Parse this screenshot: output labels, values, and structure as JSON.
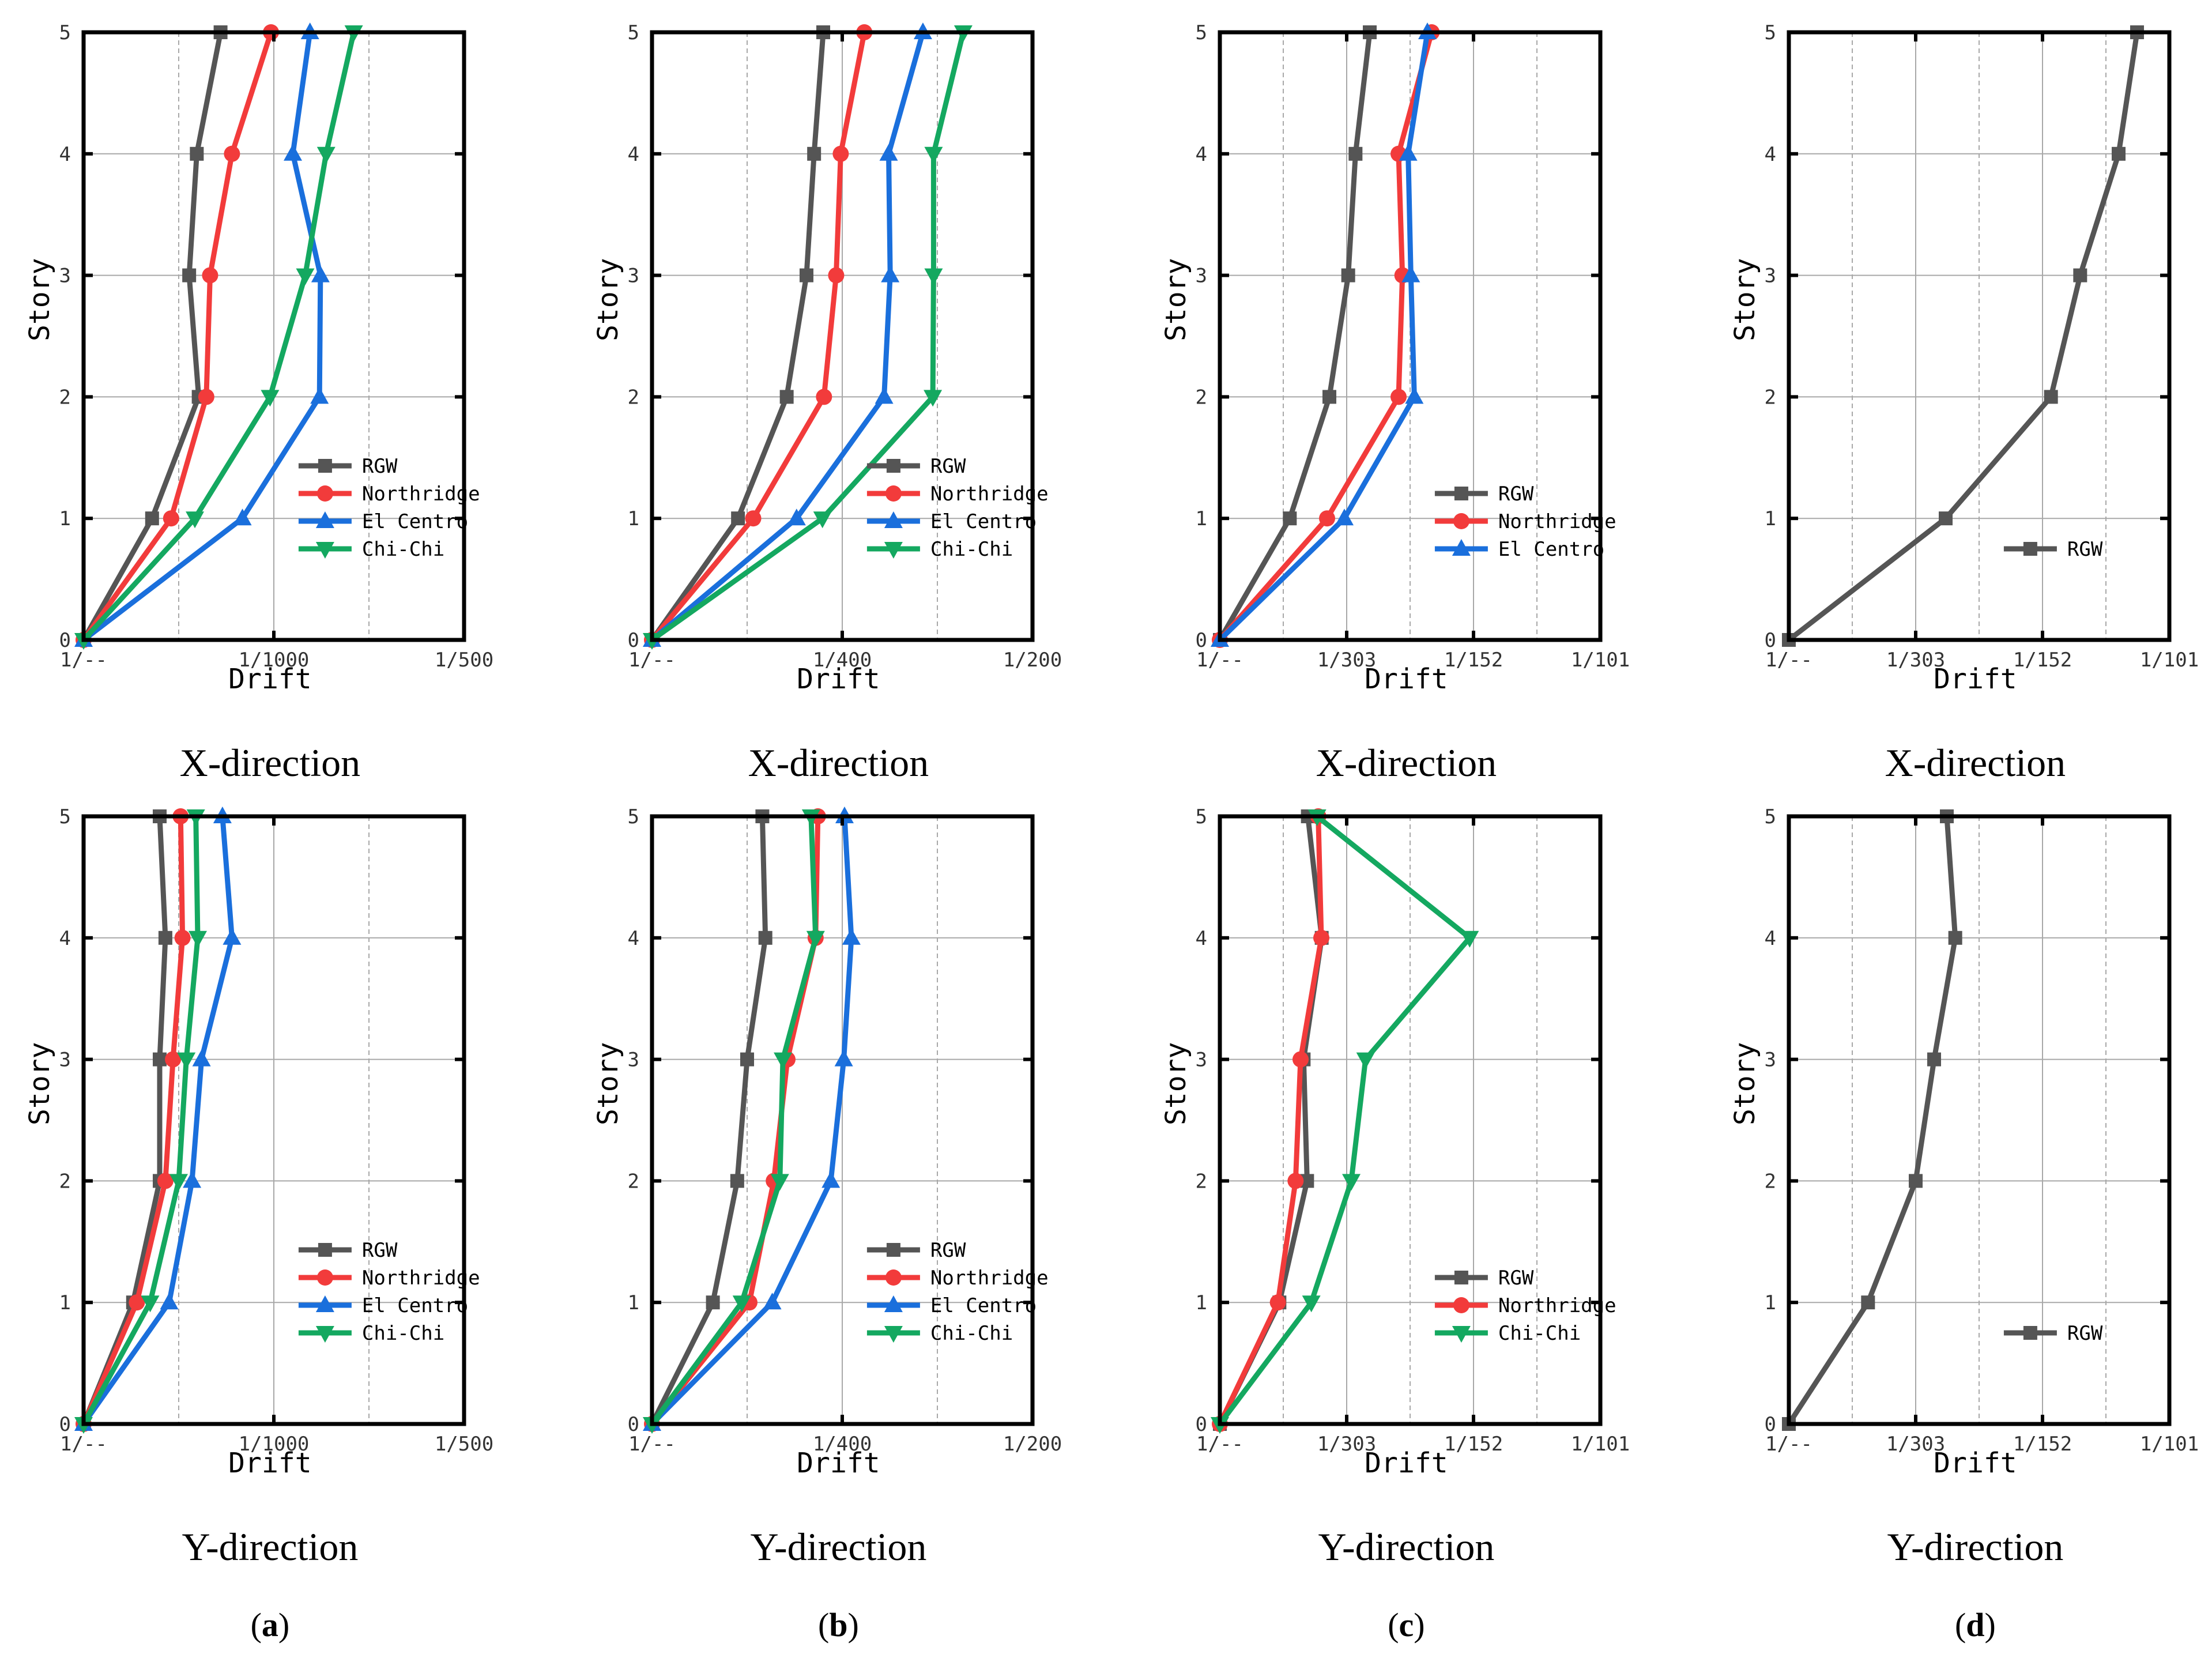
{
  "series_styles": {
    "RGW": {
      "color": "#555555",
      "marker": "square"
    },
    "Northridge": {
      "color": "#f23b3b",
      "marker": "circle"
    },
    "El Centro": {
      "color": "#1a6fdc",
      "marker": "triangle-up"
    },
    "Chi-Chi": {
      "color": "#14a860",
      "marker": "triangle-down"
    }
  },
  "columns": [
    {
      "open": "(",
      "letter": "a",
      "close": ")"
    },
    {
      "open": "(",
      "letter": "b",
      "close": ")"
    },
    {
      "open": "(",
      "letter": "c",
      "close": ")"
    },
    {
      "open": "(",
      "letter": "d",
      "close": ")"
    }
  ],
  "chart_data": [
    {
      "type": "line",
      "title": "X-direction",
      "xlabel": "Drift",
      "ylabel": "Story",
      "xlim": [
        0,
        0.002
      ],
      "ylim": [
        0,
        5
      ],
      "grid": true,
      "legend": "bottom-right",
      "xticks": [
        0,
        0.001,
        0.002
      ],
      "xticklabels": [
        "1/--",
        "1/1000",
        "1/500"
      ],
      "yticks": [
        0,
        1,
        2,
        3,
        4,
        5
      ],
      "yticklabels": [
        "0",
        "1",
        "2",
        "3",
        "4",
        "5"
      ],
      "series": [
        {
          "name": "RGW",
          "x": [
            0,
            0.00036,
            0.000605,
            0.000555,
            0.000595,
            0.00072
          ],
          "y": [
            0,
            1,
            2,
            3,
            4,
            5
          ]
        },
        {
          "name": "Northridge",
          "x": [
            0,
            0.00046,
            0.000645,
            0.000665,
            0.00078,
            0.000985
          ],
          "y": [
            0,
            1,
            2,
            3,
            4,
            5
          ]
        },
        {
          "name": "El Centro",
          "x": [
            0,
            0.000835,
            0.00124,
            0.001245,
            0.0011,
            0.00119
          ],
          "y": [
            0,
            1,
            2,
            3,
            4,
            5
          ]
        },
        {
          "name": "Chi-Chi",
          "x": [
            0,
            0.000585,
            0.00098,
            0.001165,
            0.001275,
            0.00142
          ],
          "y": [
            0,
            1,
            2,
            3,
            4,
            5
          ]
        }
      ]
    },
    {
      "type": "line",
      "title": "X-direction",
      "xlabel": "Drift",
      "ylabel": "Story",
      "xlim": [
        0,
        0.005
      ],
      "ylim": [
        0,
        5
      ],
      "grid": true,
      "legend": "bottom-right",
      "xticks": [
        0,
        0.0025,
        0.005
      ],
      "xticklabels": [
        "1/--",
        "1/400",
        "1/200"
      ],
      "yticks": [
        0,
        1,
        2,
        3,
        4,
        5
      ],
      "yticklabels": [
        "0",
        "1",
        "2",
        "3",
        "4",
        "5"
      ],
      "series": [
        {
          "name": "RGW",
          "x": [
            0,
            0.00113,
            0.00177,
            0.00203,
            0.00213,
            0.00225
          ],
          "y": [
            0,
            1,
            2,
            3,
            4,
            5
          ]
        },
        {
          "name": "Northridge",
          "x": [
            0,
            0.00133,
            0.00226,
            0.00242,
            0.00248,
            0.00279
          ],
          "y": [
            0,
            1,
            2,
            3,
            4,
            5
          ]
        },
        {
          "name": "El Centro",
          "x": [
            0,
            0.0019,
            0.00305,
            0.00313,
            0.00311,
            0.00356
          ],
          "y": [
            0,
            1,
            2,
            3,
            4,
            5
          ]
        },
        {
          "name": "Chi-Chi",
          "x": [
            0,
            0.00224,
            0.00369,
            0.0037,
            0.0037,
            0.00409
          ],
          "y": [
            0,
            1,
            2,
            3,
            4,
            5
          ]
        }
      ]
    },
    {
      "type": "line",
      "title": "X-direction",
      "xlabel": "Drift",
      "ylabel": "Story",
      "xlim": [
        0,
        0.0099
      ],
      "ylim": [
        0,
        5
      ],
      "grid": true,
      "legend": "bottom-right",
      "xticks": [
        0,
        0.0033,
        0.0066,
        0.0099
      ],
      "xticklabels": [
        "1/--",
        "1/303",
        "1/152",
        "1/101"
      ],
      "yticks": [
        0,
        1,
        2,
        3,
        4,
        5
      ],
      "yticklabels": [
        "0",
        "1",
        "2",
        "3",
        "4",
        "5"
      ],
      "series": [
        {
          "name": "RGW",
          "x": [
            0,
            0.00182,
            0.00285,
            0.00334,
            0.00353,
            0.0039
          ],
          "y": [
            0,
            1,
            2,
            3,
            4,
            5
          ]
        },
        {
          "name": "Northridge",
          "x": [
            0,
            0.00279,
            0.00465,
            0.00475,
            0.00465,
            0.00551
          ],
          "y": [
            0,
            1,
            2,
            3,
            4,
            5
          ]
        },
        {
          "name": "El Centro",
          "x": [
            0,
            0.00324,
            0.00506,
            0.00497,
            0.0049,
            0.0054
          ],
          "y": [
            0,
            1,
            2,
            3,
            4,
            5
          ]
        }
      ]
    },
    {
      "type": "line",
      "title": "X-direction",
      "xlabel": "Drift",
      "ylabel": "Story",
      "xlim": [
        0,
        0.0099
      ],
      "ylim": [
        0,
        5
      ],
      "grid": true,
      "legend": "bottom-right",
      "xticks": [
        0,
        0.0033,
        0.0066,
        0.0099
      ],
      "xticklabels": [
        "1/--",
        "1/303",
        "1/152",
        "1/101"
      ],
      "yticks": [
        0,
        1,
        2,
        3,
        4,
        5
      ],
      "yticklabels": [
        "0",
        "1",
        "2",
        "3",
        "4",
        "5"
      ],
      "series": [
        {
          "name": "RGW",
          "x": [
            0,
            0.00408,
            0.00682,
            0.00758,
            0.00858,
            0.00906
          ],
          "y": [
            0,
            1,
            2,
            3,
            4,
            5
          ]
        }
      ]
    },
    {
      "type": "line",
      "title": "Y-direction",
      "xlabel": "Drift",
      "ylabel": "Story",
      "xlim": [
        0,
        0.002
      ],
      "ylim": [
        0,
        5
      ],
      "grid": true,
      "legend": "bottom-right",
      "xticks": [
        0,
        0.001,
        0.002
      ],
      "xticklabels": [
        "1/--",
        "1/1000",
        "1/500"
      ],
      "yticks": [
        0,
        1,
        2,
        3,
        4,
        5
      ],
      "yticklabels": [
        "0",
        "1",
        "2",
        "3",
        "4",
        "5"
      ],
      "series": [
        {
          "name": "RGW",
          "x": [
            0,
            0.00026,
            0.0004,
            0.0004,
            0.00043,
            0.0004
          ],
          "y": [
            0,
            1,
            2,
            3,
            4,
            5
          ]
        },
        {
          "name": "Northridge",
          "x": [
            0,
            0.00028,
            0.00043,
            0.00047,
            0.00052,
            0.00051
          ],
          "y": [
            0,
            1,
            2,
            3,
            4,
            5
          ]
        },
        {
          "name": "El Centro",
          "x": [
            0,
            0.00045,
            0.00057,
            0.00062,
            0.00078,
            0.00073
          ],
          "y": [
            0,
            1,
            2,
            3,
            4,
            5
          ]
        },
        {
          "name": "Chi-Chi",
          "x": [
            0,
            0.00035,
            0.0005,
            0.00054,
            0.0006,
            0.00059
          ],
          "y": [
            0,
            1,
            2,
            3,
            4,
            5
          ]
        }
      ]
    },
    {
      "type": "line",
      "title": "Y-direction",
      "xlabel": "Drift",
      "ylabel": "Story",
      "xlim": [
        0,
        0.005
      ],
      "ylim": [
        0,
        5
      ],
      "grid": true,
      "legend": "bottom-right",
      "xticks": [
        0,
        0.0025,
        0.005
      ],
      "xticklabels": [
        "1/--",
        "1/400",
        "1/200"
      ],
      "yticks": [
        0,
        1,
        2,
        3,
        4,
        5
      ],
      "yticklabels": [
        "0",
        "1",
        "2",
        "3",
        "4",
        "5"
      ],
      "series": [
        {
          "name": "RGW",
          "x": [
            0,
            0.0008,
            0.00112,
            0.00125,
            0.00149,
            0.00145
          ],
          "y": [
            0,
            1,
            2,
            3,
            4,
            5
          ]
        },
        {
          "name": "Northridge",
          "x": [
            0,
            0.00128,
            0.0016,
            0.00178,
            0.00215,
            0.00218
          ],
          "y": [
            0,
            1,
            2,
            3,
            4,
            5
          ]
        },
        {
          "name": "El Centro",
          "x": [
            0,
            0.00158,
            0.00235,
            0.00252,
            0.00262,
            0.00253
          ],
          "y": [
            0,
            1,
            2,
            3,
            4,
            5
          ]
        },
        {
          "name": "Chi-Chi",
          "x": [
            0,
            0.00118,
            0.00168,
            0.00172,
            0.00215,
            0.00209
          ],
          "y": [
            0,
            1,
            2,
            3,
            4,
            5
          ]
        }
      ]
    },
    {
      "type": "line",
      "title": "Y-direction",
      "xlabel": "Drift",
      "ylabel": "Story",
      "xlim": [
        0,
        0.0099
      ],
      "ylim": [
        0,
        5
      ],
      "grid": true,
      "legend": "bottom-right",
      "xticks": [
        0,
        0.0033,
        0.0066,
        0.0099
      ],
      "xticklabels": [
        "1/--",
        "1/303",
        "1/152",
        "1/101"
      ],
      "yticks": [
        0,
        1,
        2,
        3,
        4,
        5
      ],
      "yticklabels": [
        "0",
        "1",
        "2",
        "3",
        "4",
        "5"
      ],
      "series": [
        {
          "name": "RGW",
          "x": [
            0,
            0.00155,
            0.00227,
            0.00218,
            0.00265,
            0.00229
          ],
          "y": [
            0,
            1,
            2,
            3,
            4,
            5
          ]
        },
        {
          "name": "Northridge",
          "x": [
            0,
            0.00151,
            0.00197,
            0.0021,
            0.00264,
            0.00256
          ],
          "y": [
            0,
            1,
            2,
            3,
            4,
            5
          ]
        },
        {
          "name": "Chi-Chi",
          "x": [
            0,
            0.00238,
            0.00342,
            0.00379,
            0.0065,
            0.00253
          ],
          "y": [
            0,
            1,
            2,
            3,
            4,
            5
          ]
        }
      ]
    },
    {
      "type": "line",
      "title": "Y-direction",
      "xlabel": "Drift",
      "ylabel": "Story",
      "xlim": [
        0,
        0.0099
      ],
      "ylim": [
        0,
        5
      ],
      "grid": true,
      "legend": "bottom-right",
      "xticks": [
        0,
        0.0033,
        0.0066,
        0.0099
      ],
      "xticklabels": [
        "1/--",
        "1/303",
        "1/152",
        "1/101"
      ],
      "yticks": [
        0,
        1,
        2,
        3,
        4,
        5
      ],
      "yticklabels": [
        "0",
        "1",
        "2",
        "3",
        "4",
        "5"
      ],
      "series": [
        {
          "name": "RGW",
          "x": [
            0,
            0.00206,
            0.0033,
            0.00378,
            0.00433,
            0.00411
          ],
          "y": [
            0,
            1,
            2,
            3,
            4,
            5
          ]
        }
      ]
    }
  ]
}
